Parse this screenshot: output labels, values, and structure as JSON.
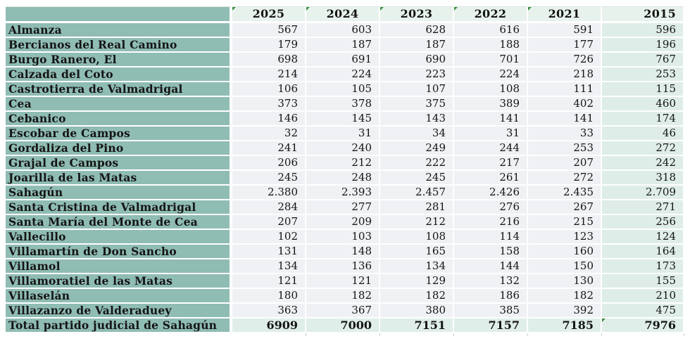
{
  "chart_data": {
    "type": "table",
    "columns": [
      "2025",
      "2024",
      "2023",
      "2022",
      "2021",
      "2015"
    ],
    "rows": [
      {
        "name": "Almanza",
        "values": [
          "567",
          "603",
          "628",
          "616",
          "591",
          "596"
        ]
      },
      {
        "name": "Bercianos del Real Camino",
        "values": [
          "179",
          "187",
          "187",
          "188",
          "177",
          "196"
        ]
      },
      {
        "name": "Burgo Ranero, El",
        "values": [
          "698",
          "691",
          "690",
          "701",
          "726",
          "767"
        ]
      },
      {
        "name": "Calzada del Coto",
        "values": [
          "214",
          "224",
          "223",
          "224",
          "218",
          "253"
        ]
      },
      {
        "name": "Castrotierra de Valmadrigal",
        "values": [
          "106",
          "105",
          "107",
          "108",
          "111",
          "115"
        ]
      },
      {
        "name": "Cea",
        "values": [
          "373",
          "378",
          "375",
          "389",
          "402",
          "460"
        ]
      },
      {
        "name": "Cebanico",
        "values": [
          "146",
          "145",
          "143",
          "141",
          "141",
          "174"
        ]
      },
      {
        "name": "Escobar de Campos",
        "values": [
          "32",
          "31",
          "34",
          "31",
          "33",
          "46"
        ]
      },
      {
        "name": "Gordaliza del Pino",
        "values": [
          "241",
          "240",
          "249",
          "244",
          "253",
          "272"
        ]
      },
      {
        "name": "Grajal de Campos",
        "values": [
          "206",
          "212",
          "222",
          "217",
          "207",
          "242"
        ]
      },
      {
        "name": "Joarilla de las Matas",
        "values": [
          "245",
          "248",
          "245",
          "261",
          "272",
          "318"
        ]
      },
      {
        "name": "Sahagún",
        "values": [
          "2.380",
          "2.393",
          "2.457",
          "2.426",
          "2.435",
          "2.709"
        ]
      },
      {
        "name": "Santa Cristina de Valmadrigal",
        "values": [
          "284",
          "277",
          "281",
          "276",
          "267",
          "271"
        ]
      },
      {
        "name": "Santa María del Monte de Cea",
        "values": [
          "207",
          "209",
          "212",
          "216",
          "215",
          "256"
        ]
      },
      {
        "name": "Vallecillo",
        "values": [
          "102",
          "103",
          "108",
          "114",
          "123",
          "124"
        ]
      },
      {
        "name": "Villamartín de Don Sancho",
        "values": [
          "131",
          "148",
          "165",
          "158",
          "160",
          "164"
        ]
      },
      {
        "name": "Villamol",
        "values": [
          "134",
          "136",
          "134",
          "144",
          "150",
          "173"
        ]
      },
      {
        "name": "Villamoratiel de las Matas",
        "values": [
          "121",
          "121",
          "129",
          "132",
          "130",
          "155"
        ]
      },
      {
        "name": "Villaselán",
        "values": [
          "180",
          "182",
          "182",
          "186",
          "182",
          "210"
        ]
      },
      {
        "name": "Villazanzo de Valderaduey",
        "values": [
          "363",
          "367",
          "380",
          "385",
          "392",
          "475"
        ]
      },
      {
        "name": "Total partido judicial de Sahagún",
        "values": [
          "6909",
          "7000",
          "7151",
          "7157",
          "7185",
          "7976"
        ],
        "is_total": true
      }
    ]
  },
  "ui": {
    "header_error_indicators": [
      true,
      true,
      true,
      true,
      true,
      false
    ],
    "total_row_error_indicator_col": 5
  },
  "colors": {
    "row_header_bg": "#8FBCB3",
    "year_header_bg": "#E8F2EC",
    "cell_bg": "#EFF1F4",
    "last_col_bg": "#DFEDE9",
    "total_row_bg": "#DFEEE9",
    "grid_white": "#FFFFFF",
    "error_indicator_green": "#3D9140"
  }
}
